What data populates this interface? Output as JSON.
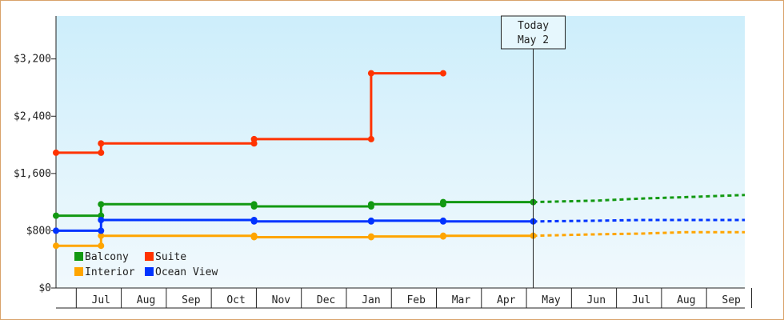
{
  "chart_data": {
    "type": "line",
    "step": true,
    "y_axis": {
      "ylim": [
        0,
        3800
      ],
      "ticks": [
        0,
        800,
        1600,
        2400,
        3200
      ],
      "tick_labels": [
        "$0",
        "$800",
        "$1,600",
        "$2,400",
        "$3,200"
      ]
    },
    "x_axis": {
      "months": [
        "",
        "Jul",
        "Aug",
        "Sep",
        "Oct",
        "Nov",
        "Dec",
        "Jan",
        "Feb",
        "Mar",
        "Apr",
        "May",
        "Jun",
        "Jul",
        "Aug",
        "Sep"
      ],
      "month_index_range": [
        0,
        15.3
      ]
    },
    "today": {
      "line1": "Today",
      "line2": "May 2",
      "month_index": 10.6
    },
    "legend": {
      "placement": "bottom-left",
      "entries": [
        {
          "label": "Balcony",
          "color": "#129912"
        },
        {
          "label": "Suite",
          "color": "#ff3300"
        },
        {
          "label": "Interior",
          "color": "#ffa500"
        },
        {
          "label": "Ocean View",
          "color": "#0033ff"
        }
      ]
    },
    "series": [
      {
        "name": "Balcony",
        "color": "#129912",
        "points": [
          [
            0.0,
            1010
          ],
          [
            1.0,
            1010
          ],
          [
            1.0,
            1170
          ],
          [
            4.4,
            1170
          ],
          [
            4.4,
            1140
          ],
          [
            7.0,
            1140
          ],
          [
            7.0,
            1170
          ],
          [
            8.6,
            1170
          ],
          [
            8.6,
            1200
          ],
          [
            10.6,
            1200
          ]
        ],
        "markers": [
          [
            0.0,
            1010
          ],
          [
            1.0,
            1010
          ],
          [
            1.0,
            1170
          ],
          [
            4.4,
            1170
          ],
          [
            4.4,
            1140
          ],
          [
            7.0,
            1140
          ],
          [
            7.0,
            1170
          ],
          [
            8.6,
            1170
          ],
          [
            8.6,
            1200
          ],
          [
            10.6,
            1200
          ]
        ],
        "forecast": [
          [
            10.6,
            1200
          ],
          [
            12.0,
            1220
          ],
          [
            13.0,
            1250
          ],
          [
            14.0,
            1270
          ],
          [
            15.3,
            1300
          ]
        ]
      },
      {
        "name": "Suite",
        "color": "#ff3300",
        "points": [
          [
            0.0,
            1890
          ],
          [
            1.0,
            1890
          ],
          [
            1.0,
            2020
          ],
          [
            4.4,
            2020
          ],
          [
            4.4,
            2080
          ],
          [
            7.0,
            2080
          ],
          [
            7.0,
            3000
          ],
          [
            8.6,
            3000
          ]
        ],
        "markers": [
          [
            0.0,
            1890
          ],
          [
            1.0,
            1890
          ],
          [
            1.0,
            2020
          ],
          [
            4.4,
            2020
          ],
          [
            4.4,
            2080
          ],
          [
            7.0,
            2080
          ],
          [
            7.0,
            3000
          ],
          [
            8.6,
            3000
          ]
        ],
        "forecast": []
      },
      {
        "name": "Interior",
        "color": "#ffa500",
        "points": [
          [
            0.0,
            590
          ],
          [
            1.0,
            590
          ],
          [
            1.0,
            730
          ],
          [
            4.4,
            730
          ],
          [
            4.4,
            710
          ],
          [
            7.0,
            710
          ],
          [
            7.0,
            720
          ],
          [
            8.6,
            720
          ],
          [
            8.6,
            730
          ],
          [
            10.6,
            730
          ]
        ],
        "markers": [
          [
            0.0,
            590
          ],
          [
            1.0,
            590
          ],
          [
            1.0,
            730
          ],
          [
            4.4,
            730
          ],
          [
            4.4,
            710
          ],
          [
            7.0,
            710
          ],
          [
            7.0,
            720
          ],
          [
            8.6,
            720
          ],
          [
            8.6,
            730
          ],
          [
            10.6,
            730
          ]
        ],
        "forecast": [
          [
            10.6,
            730
          ],
          [
            12.0,
            750
          ],
          [
            13.0,
            760
          ],
          [
            14.0,
            780
          ],
          [
            15.3,
            780
          ]
        ]
      },
      {
        "name": "Ocean View",
        "color": "#0033ff",
        "points": [
          [
            0.0,
            800
          ],
          [
            1.0,
            800
          ],
          [
            1.0,
            950
          ],
          [
            4.4,
            950
          ],
          [
            4.4,
            930
          ],
          [
            7.0,
            930
          ],
          [
            7.0,
            940
          ],
          [
            8.6,
            940
          ],
          [
            8.6,
            930
          ],
          [
            10.6,
            930
          ]
        ],
        "markers": [
          [
            0.0,
            800
          ],
          [
            1.0,
            800
          ],
          [
            1.0,
            950
          ],
          [
            4.4,
            950
          ],
          [
            4.4,
            930
          ],
          [
            7.0,
            930
          ],
          [
            7.0,
            940
          ],
          [
            8.6,
            940
          ],
          [
            8.6,
            930
          ],
          [
            10.6,
            930
          ]
        ],
        "forecast": [
          [
            10.6,
            930
          ],
          [
            12.0,
            940
          ],
          [
            13.0,
            950
          ],
          [
            14.0,
            950
          ],
          [
            15.3,
            950
          ]
        ]
      }
    ]
  }
}
